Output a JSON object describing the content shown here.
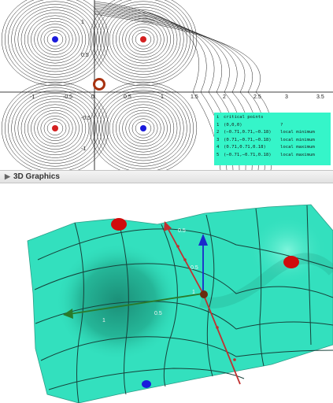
{
  "graphics2d": {
    "x_ticks": [
      "-1",
      "-0.5",
      "0",
      "0.5",
      "1",
      "1.5",
      "2",
      "2.5",
      "3",
      "3.5"
    ],
    "y_ticks": [
      "1",
      "0.5",
      "-0.5",
      "-1"
    ],
    "critical_table": {
      "header": [
        "i",
        "critical points",
        ""
      ],
      "rows": [
        [
          "1",
          "(0,0,0)",
          "?"
        ],
        [
          "2",
          "(−0.71,0.71,−0.18)",
          "local minimum"
        ],
        [
          "3",
          "(0.71,−0.71,−0.18)",
          "local minimum"
        ],
        [
          "4",
          "(0.71,0.71,0.18)",
          "local maximum"
        ],
        [
          "5",
          "(−0.71,−0.71,0.18)",
          "local maximum"
        ]
      ]
    },
    "colors": {
      "max": "#d42020",
      "min": "#1a1adc",
      "saddle": "#a83210",
      "table_bg": "#35f5c9"
    }
  },
  "panel3d": {
    "title": "3D Graphics"
  },
  "graphics3d": {
    "axis_labels": [
      "0.5",
      "1",
      "0.5",
      "0.5",
      "1"
    ],
    "colors": {
      "surface": "#33e0be",
      "x_axis": "#2a7a2a",
      "y_axis": "#c03030",
      "z_axis": "#1a2acc"
    }
  }
}
